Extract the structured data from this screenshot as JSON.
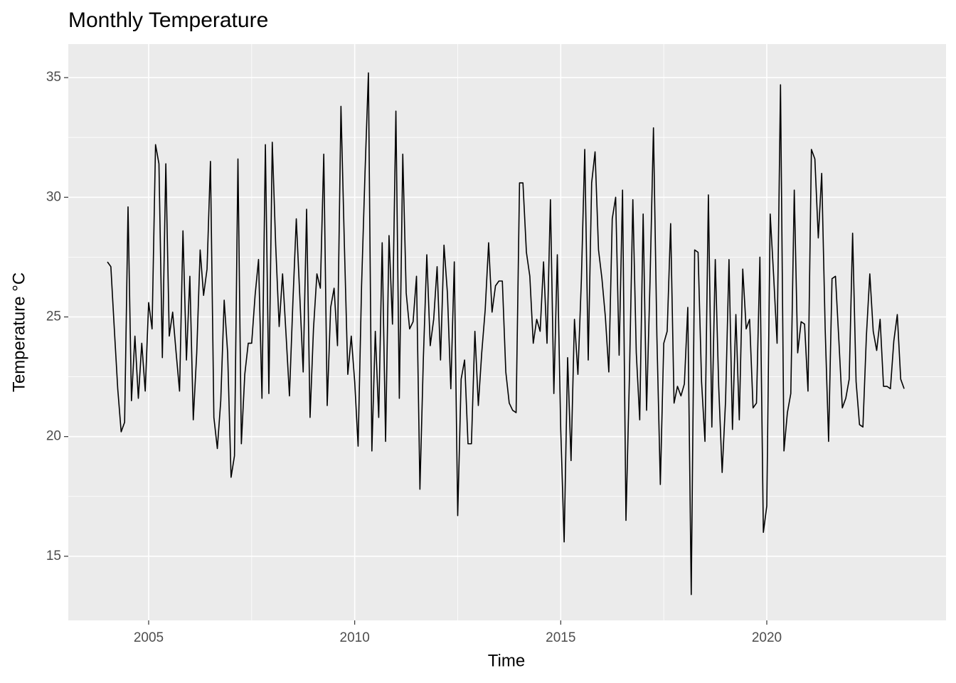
{
  "chart_data": {
    "type": "line",
    "title": "Monthly Temperature",
    "x_label": "Time",
    "y_label": "Temperature °C",
    "x": [
      2004,
      2004.083,
      2004.167,
      2004.25,
      2004.333,
      2004.417,
      2004.5,
      2004.583,
      2004.667,
      2004.75,
      2004.833,
      2004.917,
      2005,
      2005.083,
      2005.167,
      2005.25,
      2005.333,
      2005.417,
      2005.5,
      2005.583,
      2005.667,
      2005.75,
      2005.833,
      2005.917,
      2006,
      2006.083,
      2006.167,
      2006.25,
      2006.333,
      2006.417,
      2006.5,
      2006.583,
      2006.667,
      2006.75,
      2006.833,
      2006.917,
      2007,
      2007.083,
      2007.167,
      2007.25,
      2007.333,
      2007.417,
      2007.5,
      2007.583,
      2007.667,
      2007.75,
      2007.833,
      2007.917,
      2008,
      2008.083,
      2008.167,
      2008.25,
      2008.333,
      2008.417,
      2008.5,
      2008.583,
      2008.667,
      2008.75,
      2008.833,
      2008.917,
      2009,
      2009.083,
      2009.167,
      2009.25,
      2009.333,
      2009.417,
      2009.5,
      2009.583,
      2009.667,
      2009.75,
      2009.833,
      2009.917,
      2010,
      2010.083,
      2010.167,
      2010.25,
      2010.333,
      2010.417,
      2010.5,
      2010.583,
      2010.667,
      2010.75,
      2010.833,
      2010.917,
      2011,
      2011.083,
      2011.167,
      2011.25,
      2011.333,
      2011.417,
      2011.5,
      2011.583,
      2011.667,
      2011.75,
      2011.833,
      2011.917,
      2012,
      2012.083,
      2012.167,
      2012.25,
      2012.333,
      2012.417,
      2012.5,
      2012.583,
      2012.667,
      2012.75,
      2012.833,
      2012.917,
      2013,
      2013.083,
      2013.167,
      2013.25,
      2013.333,
      2013.417,
      2013.5,
      2013.583,
      2013.667,
      2013.75,
      2013.833,
      2013.917,
      2014,
      2014.083,
      2014.167,
      2014.25,
      2014.333,
      2014.417,
      2014.5,
      2014.583,
      2014.667,
      2014.75,
      2014.833,
      2014.917,
      2015,
      2015.083,
      2015.167,
      2015.25,
      2015.333,
      2015.417,
      2015.5,
      2015.583,
      2015.667,
      2015.75,
      2015.833,
      2015.917,
      2016,
      2016.083,
      2016.167,
      2016.25,
      2016.333,
      2016.417,
      2016.5,
      2016.583,
      2016.667,
      2016.75,
      2016.833,
      2016.917,
      2017,
      2017.083,
      2017.167,
      2017.25,
      2017.333,
      2017.417,
      2017.5,
      2017.583,
      2017.667,
      2017.75,
      2017.833,
      2017.917,
      2018,
      2018.083,
      2018.167,
      2018.25,
      2018.333,
      2018.417,
      2018.5,
      2018.583,
      2018.667,
      2018.75,
      2018.833,
      2018.917,
      2019,
      2019.083,
      2019.167,
      2019.25,
      2019.333,
      2019.417,
      2019.5,
      2019.583,
      2019.667,
      2019.75,
      2019.833,
      2019.917,
      2020,
      2020.083,
      2020.167,
      2020.25,
      2020.333,
      2020.417,
      2020.5,
      2020.583,
      2020.667,
      2020.75,
      2020.833,
      2020.917,
      2021,
      2021.083,
      2021.167,
      2021.25,
      2021.333,
      2021.417,
      2021.5,
      2021.583,
      2021.667,
      2021.75,
      2021.833,
      2021.917,
      2022,
      2022.083,
      2022.167,
      2022.25,
      2022.333,
      2022.417,
      2022.5,
      2022.583,
      2022.667,
      2022.75,
      2022.833,
      2022.917,
      2023,
      2023.083,
      2023.167,
      2023.25,
      2023.333
    ],
    "series": [
      {
        "name": "Temperature",
        "color": "#000000",
        "values": [
          27.3,
          27.1,
          24.5,
          22,
          20.2,
          20.6,
          29.6,
          21.5,
          24.2,
          21.6,
          23.9,
          21.9,
          25.6,
          24.5,
          32.2,
          31.4,
          23.3,
          31.4,
          24.2,
          25.2,
          23.5,
          21.9,
          28.6,
          23.2,
          26.7,
          20.7,
          23.5,
          27.8,
          25.9,
          27,
          31.5,
          20.8,
          19.5,
          21.5,
          25.7,
          23.5,
          18.3,
          19.2,
          31.6,
          19.7,
          22.6,
          23.9,
          23.9,
          25.9,
          27.4,
          21.6,
          32.2,
          21.8,
          32.3,
          28,
          24.6,
          26.8,
          24.3,
          21.7,
          25.6,
          29.1,
          25.9,
          22.7,
          29.5,
          20.8,
          24.5,
          26.8,
          26.2,
          31.8,
          21.3,
          25.4,
          26.2,
          23.8,
          33.8,
          28,
          22.6,
          24.2,
          22.3,
          19.6,
          26.3,
          31,
          35.2,
          19.4,
          24.4,
          20.8,
          28.1,
          19.8,
          28.4,
          24.7,
          33.6,
          21.6,
          31.8,
          26,
          24.5,
          24.8,
          26.7,
          17.8,
          23.3,
          27.6,
          23.8,
          24.9,
          27.1,
          23.2,
          28,
          26,
          22,
          27.3,
          16.7,
          22.4,
          23.2,
          19.7,
          19.7,
          24.4,
          21.3,
          23.5,
          25.3,
          28.1,
          25.2,
          26.3,
          26.5,
          26.5,
          22.7,
          21.4,
          21.1,
          21,
          30.6,
          30.6,
          27.7,
          26.7,
          23.9,
          24.9,
          24.4,
          27.3,
          23.9,
          29.9,
          21.8,
          27.6,
          20.3,
          15.6,
          23.3,
          19,
          24.9,
          22.6,
          26.5,
          32,
          23.2,
          30.6,
          31.9,
          27.8,
          26.6,
          25,
          22.7,
          29.1,
          30,
          23.4,
          30.3,
          16.5,
          22.5,
          29.9,
          23.5,
          20.7,
          29.3,
          21.1,
          26.5,
          32.9,
          24.2,
          18,
          23.9,
          24.4,
          28.9,
          21.4,
          22.1,
          21.7,
          22.2,
          25.4,
          13.4,
          27.8,
          27.7,
          22.3,
          19.8,
          30.1,
          20.4,
          27.4,
          22.1,
          18.5,
          21.5,
          27.4,
          20.3,
          25.1,
          20.7,
          27,
          24.5,
          24.9,
          21.2,
          21.4,
          27.5,
          16,
          17.1,
          29.3,
          26.7,
          23.9,
          34.7,
          19.4,
          21,
          21.8,
          30.3,
          23.5,
          24.8,
          24.7,
          21.9,
          32,
          31.6,
          28.3,
          31,
          24.5,
          19.8,
          26.6,
          26.7,
          24,
          21.2,
          21.6,
          22.4,
          28.5,
          22.3,
          20.5,
          20.4,
          24.2,
          26.8,
          24.4,
          23.6,
          24.9,
          22.1,
          22.1,
          22,
          24,
          25.1,
          22.4,
          22
        ]
      }
    ],
    "xlim": [
      2003.05,
      2024.35
    ],
    "ylim": [
      12.32,
      36.4
    ],
    "xticks": [
      2005,
      2010,
      2015,
      2020
    ],
    "yticks": [
      15,
      20,
      25,
      30,
      35
    ],
    "grid": true
  }
}
